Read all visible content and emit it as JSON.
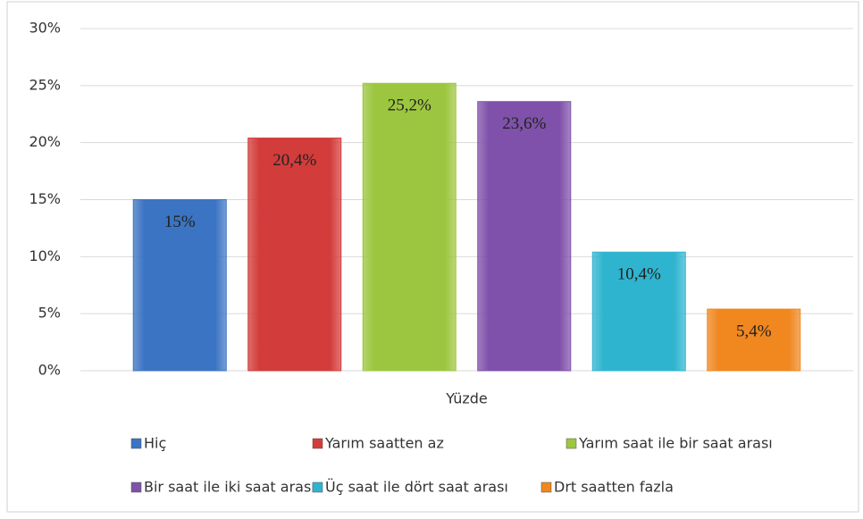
{
  "chart_data": {
    "type": "bar",
    "categories": [
      "Yüzde"
    ],
    "series": [
      {
        "name": "Hiç",
        "color": "#3b74c2",
        "values": [
          15
        ],
        "value_labels": [
          "15%"
        ]
      },
      {
        "name": "Yarım saatten az",
        "color": "#d23c3a",
        "values": [
          20.4
        ],
        "value_labels": [
          "20,4%"
        ]
      },
      {
        "name": "Yarım saat ile bir saat arası",
        "color": "#9cc63f",
        "values": [
          25.2
        ],
        "value_labels": [
          "25,2%"
        ]
      },
      {
        "name": "Bir saat ile iki saat arası",
        "color": "#7f51aa",
        "values": [
          23.6
        ],
        "value_labels": [
          "23,6%"
        ]
      },
      {
        "name": "Üç saat ile dört saat arası",
        "color": "#2fb4d0",
        "values": [
          10.4
        ],
        "value_labels": [
          "10,4%"
        ]
      },
      {
        "name": "Drt saatten fazla",
        "color": "#f0871f",
        "values": [
          5.4
        ],
        "value_labels": [
          "5,4%"
        ]
      }
    ],
    "ylim": [
      0,
      30
    ],
    "yticks": [
      {
        "value": 0,
        "label": "0%"
      },
      {
        "value": 5,
        "label": "5%"
      },
      {
        "value": 10,
        "label": "10%"
      },
      {
        "value": 15,
        "label": "15%"
      },
      {
        "value": 20,
        "label": "20%"
      },
      {
        "value": 25,
        "label": "25%"
      },
      {
        "value": 30,
        "label": "30%"
      }
    ],
    "grid": true,
    "legend": "bottom"
  }
}
